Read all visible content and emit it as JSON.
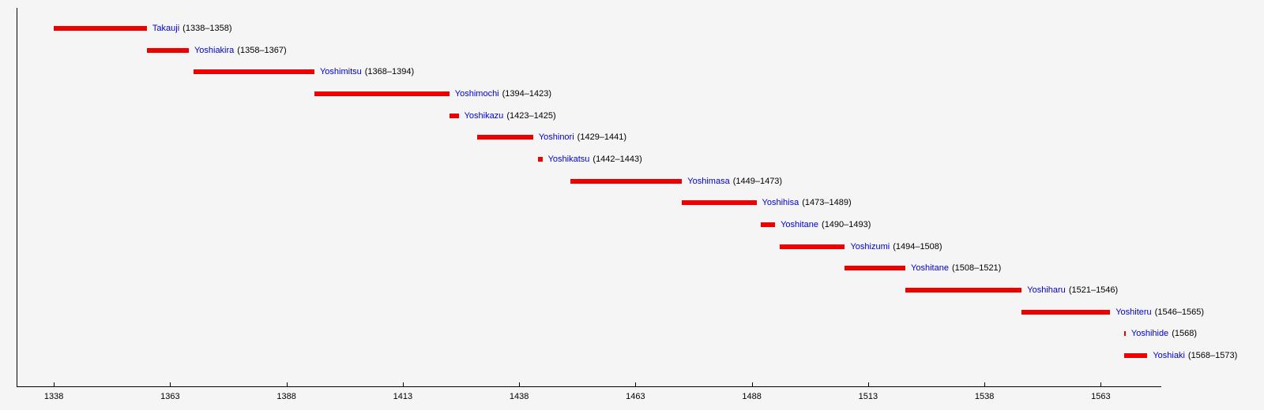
{
  "chart_data": {
    "type": "bar",
    "subtype": "horizontal-timeline",
    "title": "",
    "xlabel": "",
    "ylabel": "",
    "x_ticks": [
      1338,
      1363,
      1388,
      1413,
      1438,
      1463,
      1488,
      1513,
      1538,
      1563
    ],
    "x_range": [
      1330,
      1576
    ],
    "grid": false,
    "legend": false,
    "bar_color": "#ee0000",
    "name_color": "#0000cc",
    "date_color": "#000000",
    "axis_color": "#000000",
    "background_color": "#f5f5f5",
    "series": [
      {
        "name": "Takauji",
        "start": 1338,
        "end": 1358,
        "period_label": "(1338–1358)"
      },
      {
        "name": "Yoshiakira",
        "start": 1358,
        "end": 1367,
        "period_label": "(1358–1367)"
      },
      {
        "name": "Yoshimitsu",
        "start": 1368,
        "end": 1394,
        "period_label": "(1368–1394)"
      },
      {
        "name": "Yoshimochi",
        "start": 1394,
        "end": 1423,
        "period_label": "(1394–1423)"
      },
      {
        "name": "Yoshikazu",
        "start": 1423,
        "end": 1425,
        "period_label": "(1423–1425)"
      },
      {
        "name": "Yoshinori",
        "start": 1429,
        "end": 1441,
        "period_label": "(1429–1441)"
      },
      {
        "name": "Yoshikatsu",
        "start": 1442,
        "end": 1443,
        "period_label": "(1442–1443)"
      },
      {
        "name": "Yoshimasa",
        "start": 1449,
        "end": 1473,
        "period_label": "(1449–1473)"
      },
      {
        "name": "Yoshihisa",
        "start": 1473,
        "end": 1489,
        "period_label": "(1473–1489)"
      },
      {
        "name": "Yoshitane",
        "start": 1490,
        "end": 1493,
        "period_label": "(1490–1493)"
      },
      {
        "name": "Yoshizumi",
        "start": 1494,
        "end": 1508,
        "period_label": "(1494–1508)"
      },
      {
        "name": "Yoshitane",
        "start": 1508,
        "end": 1521,
        "period_label": "(1508–1521)"
      },
      {
        "name": "Yoshiharu",
        "start": 1521,
        "end": 1546,
        "period_label": "(1521–1546)"
      },
      {
        "name": "Yoshiteru",
        "start": 1546,
        "end": 1565,
        "period_label": "(1546–1565)"
      },
      {
        "name": "Yoshihide",
        "start": 1568,
        "end": 1568,
        "period_label": "(1568)"
      },
      {
        "name": "Yoshiaki",
        "start": 1568,
        "end": 1573,
        "period_label": "(1568–1573)"
      }
    ]
  }
}
